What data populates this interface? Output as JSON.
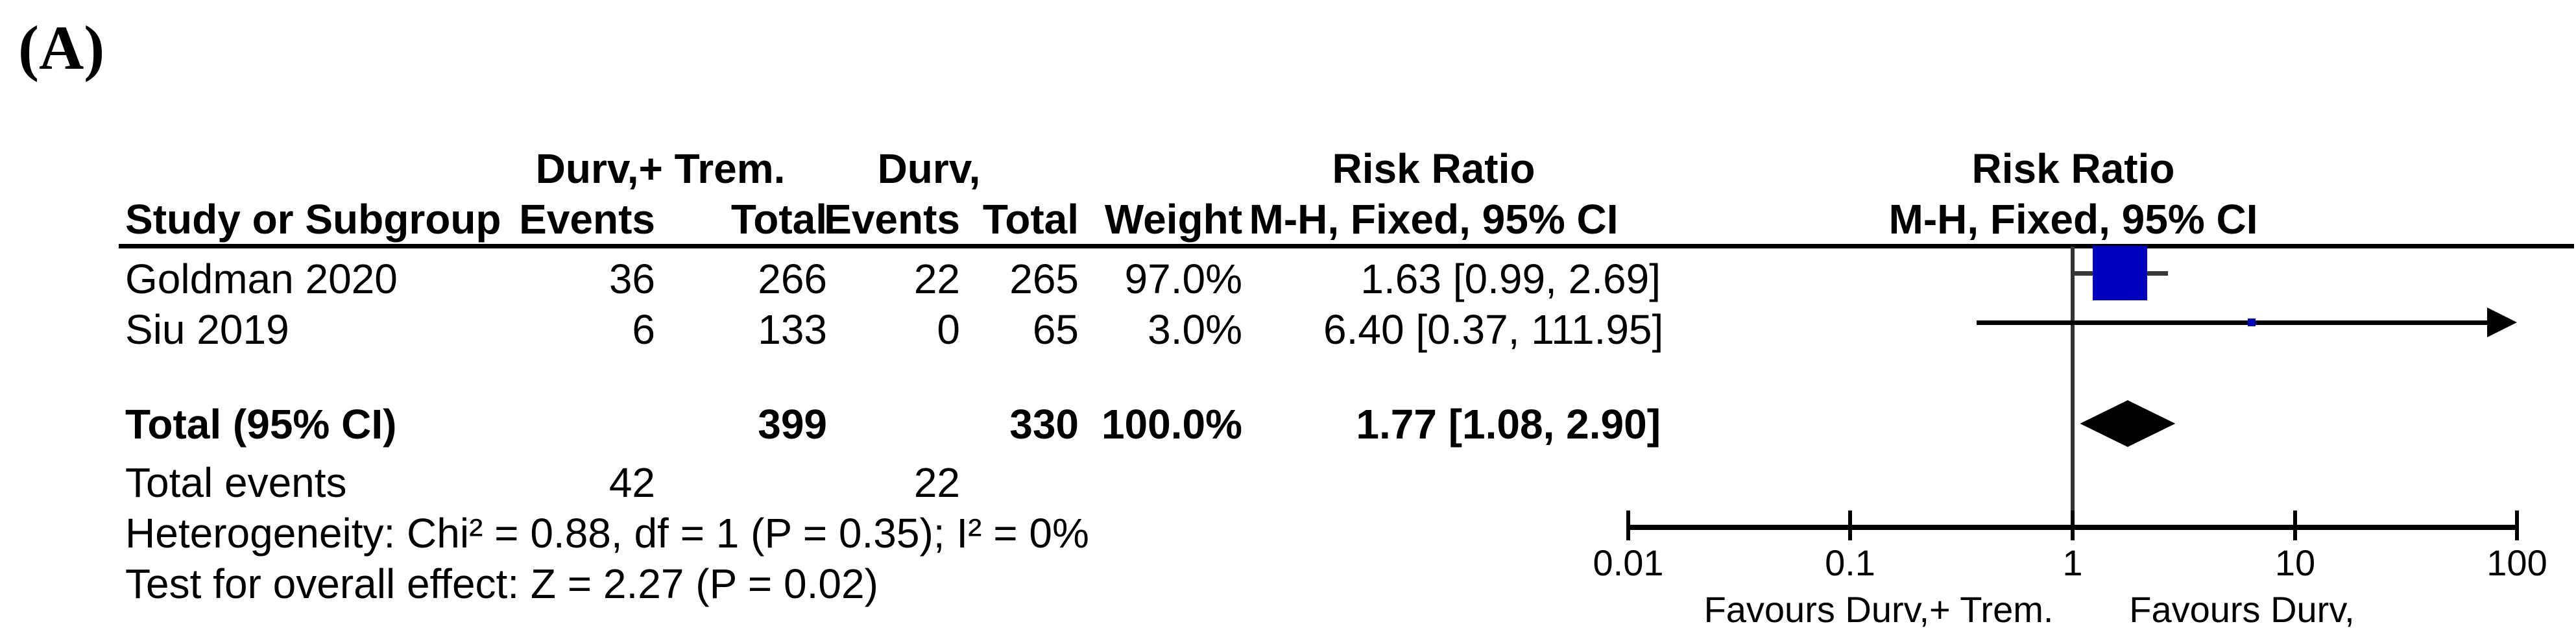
{
  "panel_label": "(A)",
  "table": {
    "group1_header": "Durv,+ Trem.",
    "group2_header": "Durv,",
    "risk_ratio_header_left": "Risk Ratio",
    "method_header_left": "M-H, Fixed, 95% CI",
    "risk_ratio_header_right": "Risk Ratio",
    "method_header_right": "M-H, Fixed, 95% CI",
    "col_study": "Study or Subgroup",
    "col_events1": "Events",
    "col_total1": "Total",
    "col_events2": "Events",
    "col_total2": "Total",
    "col_weight": "Weight",
    "rows": [
      {
        "study": "Goldman 2020",
        "events1": "36",
        "total1": "266",
        "events2": "22",
        "total2": "265",
        "weight": "97.0%",
        "rr_text": "1.63 [0.99, 2.69]"
      },
      {
        "study": "Siu 2019",
        "events1": "6",
        "total1": "133",
        "events2": "0",
        "total2": "65",
        "weight": "3.0%",
        "rr_text": "6.40 [0.37, 111.95]"
      }
    ],
    "total_row": {
      "label": "Total (95% CI)",
      "total1": "399",
      "total2": "330",
      "weight": "100.0%",
      "rr_text": "1.77 [1.08, 2.90]"
    },
    "total_events_row": {
      "label": "Total events",
      "events1": "42",
      "events2": "22"
    },
    "heterogeneity_line": "Heterogeneity: Chi² = 0.88, df = 1 (P = 0.35); I² = 0%",
    "overall_effect_line": "Test for overall effect: Z = 2.27 (P = 0.02)"
  },
  "axis": {
    "ticks": [
      "0.01",
      "0.1",
      "1",
      "10",
      "100"
    ],
    "favours_left": "Favours Durv,+ Trem.",
    "favours_right": "Favours Durv,"
  },
  "colors": {
    "marker_blue": "#0000BF",
    "whisker_gray": "#383838",
    "line_black": "#000000"
  },
  "chart_data": {
    "type": "forest",
    "effect_measure": "Risk Ratio",
    "method": "M-H, Fixed, 95% CI",
    "x_scale": "log10",
    "x_ticks": [
      0.01,
      0.1,
      1,
      10,
      100
    ],
    "xlim": [
      0.01,
      100
    ],
    "studies": [
      {
        "study": "Goldman 2020",
        "events_treat": 36,
        "total_treat": 266,
        "events_ctrl": 22,
        "total_ctrl": 265,
        "weight_pct": 97.0,
        "rr": 1.63,
        "ci_low": 0.99,
        "ci_high": 2.69
      },
      {
        "study": "Siu 2019",
        "events_treat": 6,
        "total_treat": 133,
        "events_ctrl": 0,
        "total_ctrl": 65,
        "weight_pct": 3.0,
        "rr": 6.4,
        "ci_low": 0.37,
        "ci_high": 111.95
      }
    ],
    "total": {
      "label": "Total (95% CI)",
      "total_treat": 399,
      "total_ctrl": 330,
      "weight_pct": 100.0,
      "rr": 1.77,
      "ci_low": 1.08,
      "ci_high": 2.9,
      "total_events_treat": 42,
      "total_events_ctrl": 22
    },
    "heterogeneity": {
      "chi2": 0.88,
      "df": 1,
      "p": 0.35,
      "i2_pct": 0
    },
    "overall_effect": {
      "z": 2.27,
      "p": 0.02
    },
    "favours_left": "Favours Durv,+ Trem.",
    "favours_right": "Favours Durv,"
  }
}
